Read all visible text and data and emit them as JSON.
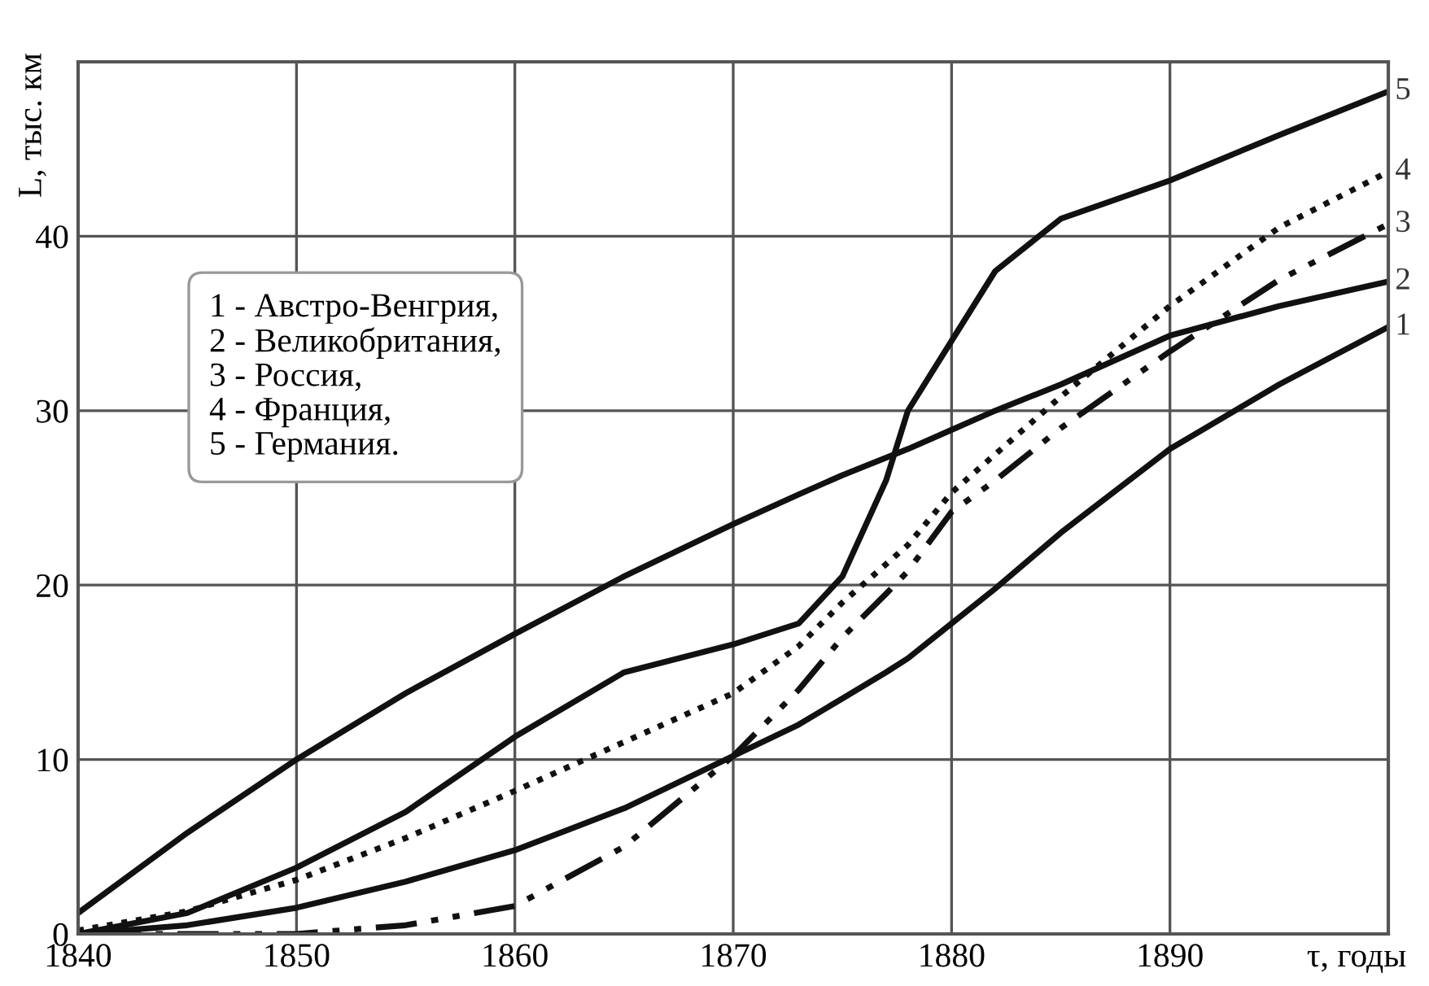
{
  "chart_data": {
    "type": "line",
    "xlabel": "τ, годы",
    "ylabel": "L, тыс. км",
    "x": [
      1840,
      1845,
      1850,
      1855,
      1860,
      1865,
      1870,
      1873,
      1875,
      1877,
      1878,
      1880,
      1882,
      1885,
      1890,
      1895,
      1900
    ],
    "series": [
      {
        "name": "1",
        "color": "#111111",
        "line_style": "solid",
        "values": [
          0,
          0.5,
          1.5,
          3,
          4.8,
          7.2,
          10.2,
          12,
          13.5,
          15,
          15.8,
          17.8,
          19.8,
          23,
          27.8,
          31.5,
          34.8
        ]
      },
      {
        "name": "2",
        "color": "#111111",
        "line_style": "solid",
        "values": [
          1.2,
          5.8,
          10,
          13.8,
          17.2,
          20.5,
          23.5,
          25.2,
          26.3,
          27.3,
          27.8,
          28.9,
          30,
          31.5,
          34.3,
          36,
          37.4
        ]
      },
      {
        "name": "3",
        "color": "#111111",
        "line_style": "dashdotdot",
        "values": [
          0,
          0,
          0,
          0.5,
          1.6,
          5,
          10.2,
          14,
          17,
          19.5,
          20.8,
          24.2,
          26,
          29,
          33.4,
          37.5,
          40.7
        ]
      },
      {
        "name": "4",
        "color": "#111111",
        "line_style": "dotted",
        "values": [
          0.2,
          1.3,
          3.1,
          5.5,
          8.2,
          11,
          13.8,
          16.5,
          19,
          21.2,
          22.3,
          25.3,
          27.5,
          30.8,
          36,
          40.5,
          43.7
        ]
      },
      {
        "name": "5",
        "color": "#111111",
        "line_style": "solid",
        "values": [
          0,
          1.2,
          3.8,
          7,
          11.3,
          15,
          16.6,
          17.8,
          20.5,
          26,
          30,
          34,
          38,
          41,
          43.2,
          45.8,
          48.3
        ]
      }
    ],
    "annotations": [
      "1 - Австро-Венгрия,",
      "2 - Великобритания,",
      "3 - Россия,",
      "4 - Франция,",
      "5 - Германия."
    ],
    "xlim": [
      1840,
      1900
    ],
    "ylim": [
      0,
      50
    ],
    "xticks": [
      1840,
      1850,
      1860,
      1870,
      1880,
      1890
    ],
    "yticks": [
      0,
      10,
      20,
      30,
      40
    ],
    "grid": true
  }
}
